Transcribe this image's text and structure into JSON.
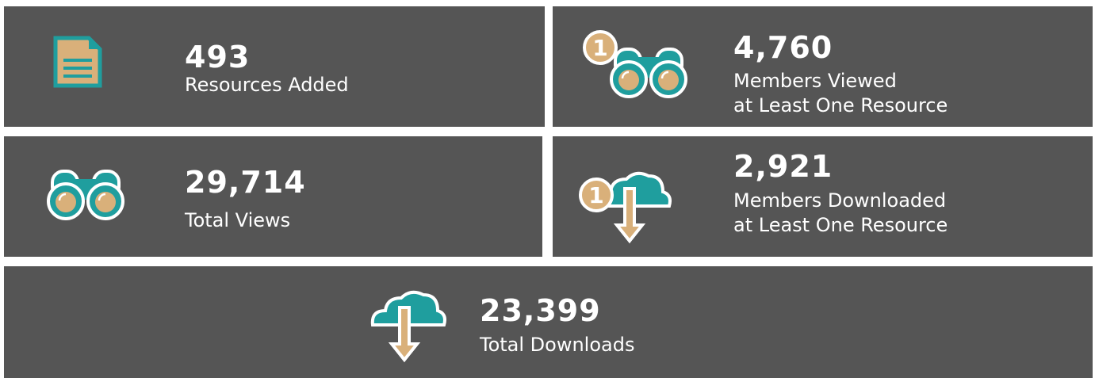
{
  "stats": [
    {
      "value": "493",
      "label": [
        "Resources Added"
      ]
    },
    {
      "value": "4,760",
      "label": [
        "Members Viewed",
        "at Least One Resource"
      ],
      "badge": "1"
    },
    {
      "value": "29,714",
      "label": [
        "Total Views"
      ]
    },
    {
      "value": "2,921",
      "label": [
        "Members Downloaded",
        "at Least One Resource"
      ],
      "badge": "1"
    },
    {
      "value": "23,399",
      "label": [
        "Total Downloads"
      ]
    }
  ]
}
